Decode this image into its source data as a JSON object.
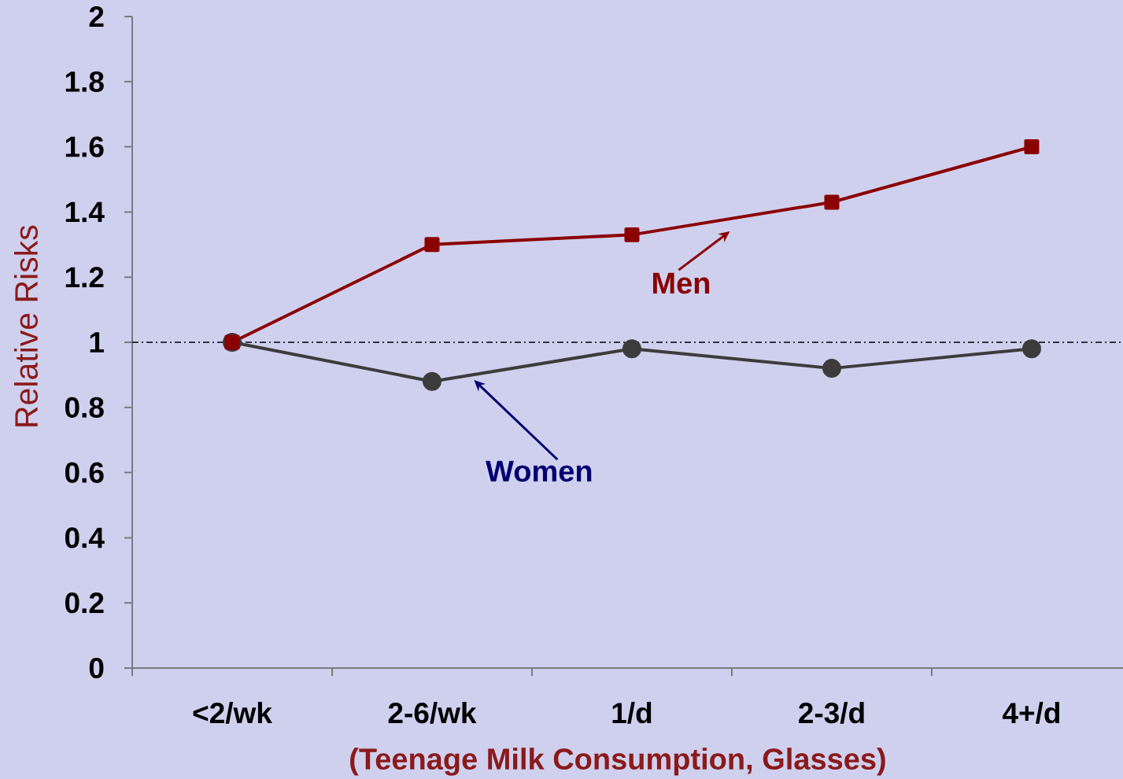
{
  "chart_data": {
    "type": "line",
    "xlabel": "(Teenage Milk Consumption, Glasses)",
    "ylabel": "Relative Risks",
    "categories": [
      "<2/wk",
      "2-6/wk",
      "1/d",
      "2-3/d",
      "4+/d"
    ],
    "series": [
      {
        "name": "Men",
        "color": "#8b0000",
        "marker": "square",
        "values": [
          1,
          1.3,
          1.33,
          1.43,
          1.6
        ]
      },
      {
        "name": "Women",
        "color": "#3c3c3c",
        "marker": "circle",
        "values": [
          1,
          0.88,
          0.98,
          0.92,
          0.98
        ]
      }
    ],
    "ylim": [
      0,
      2
    ],
    "yticks": [
      0,
      0.2,
      0.4,
      0.6,
      0.8,
      1,
      1.2,
      1.4,
      1.6,
      1.8,
      2
    ],
    "ref_lines": [
      {
        "axis": "y",
        "value": 1,
        "color": "#000000",
        "line_style": "dashed"
      }
    ]
  }
}
